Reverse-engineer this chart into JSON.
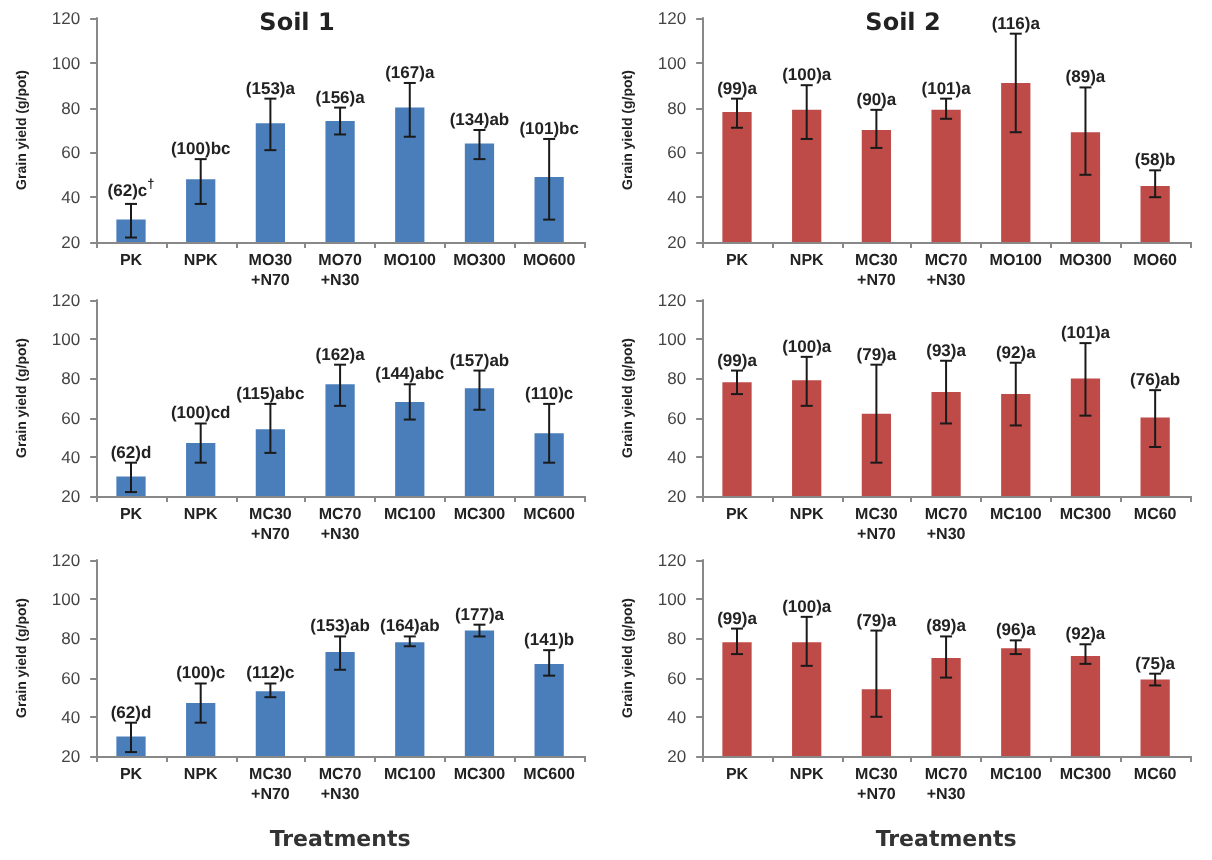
{
  "chart_data": [
    {
      "type": "bar",
      "title": "Soil 1",
      "ylabel": "Grain yield (g/pot)",
      "categories": [
        "PK",
        "NPK",
        "MO30\n+N70",
        "MO70\n+N30",
        "MO100",
        "MO300",
        "MO600"
      ],
      "values": [
        30,
        48,
        73,
        74,
        80,
        64,
        49
      ],
      "color": "#4a7ebb",
      "errors": [
        [
          22,
          37
        ],
        [
          37,
          57
        ],
        [
          61,
          84
        ],
        [
          68,
          80
        ],
        [
          67,
          91
        ],
        [
          57,
          70
        ],
        [
          30,
          66
        ]
      ],
      "annotations": [
        {
          "text": "(62)c$^{†}$",
          "x": "PK",
          "y": 37
        },
        {
          "text": "(100)bc",
          "x": "NPK",
          "y": 57
        },
        {
          "text": "(153)a",
          "x": "MO30\n+N70",
          "y": 84
        },
        {
          "text": "(156)a",
          "x": "MO70\n+N30",
          "y": 80
        },
        {
          "text": "(167)a",
          "x": "MO100",
          "y": 91
        },
        {
          "text": "(134)ab",
          "x": "MO300",
          "y": 70
        },
        {
          "text": "(101)bc",
          "x": "MO600",
          "y": 66
        }
      ],
      "ylim": [
        20,
        120
      ],
      "yticks": [
        20,
        40,
        60,
        80,
        100,
        120
      ]
    },
    {
      "type": "bar",
      "title": "Soil 2",
      "ylabel": "Grain yield (g/pot)",
      "categories": [
        "PK",
        "NPK",
        "MC30\n+N70",
        "MC70\n+N30",
        "MO100",
        "MO300",
        "MO60"
      ],
      "values": [
        78,
        79,
        70,
        79,
        91,
        69,
        45
      ],
      "color": "#be4b48",
      "errors": [
        [
          71,
          84
        ],
        [
          66,
          90
        ],
        [
          62,
          79
        ],
        [
          75,
          84
        ],
        [
          69,
          113
        ],
        [
          50,
          89
        ],
        [
          40,
          52
        ]
      ],
      "annotations": [
        {
          "text": "(99)a",
          "x": "PK",
          "y": 84
        },
        {
          "text": "(100)a",
          "x": "NPK",
          "y": 90
        },
        {
          "text": "(90)a",
          "x": "MC30\n+N70",
          "y": 79
        },
        {
          "text": "(101)a",
          "x": "MC70\n+N30",
          "y": 84
        },
        {
          "text": "(116)a",
          "x": "MO100",
          "y": 113
        },
        {
          "text": "(89)a",
          "x": "MO300",
          "y": 89
        },
        {
          "text": "(58)b",
          "x": "MO60",
          "y": 52
        }
      ],
      "ylim": [
        20,
        120
      ],
      "yticks": [
        20,
        40,
        60,
        80,
        100,
        120
      ]
    },
    {
      "type": "bar",
      "ylabel": "Grain yield (g/pot)",
      "categories": [
        "PK",
        "NPK",
        "MC30\n+N70",
        "MC70\n+N30",
        "MC100",
        "MC300",
        "MC600"
      ],
      "values": [
        30,
        47,
        54,
        77,
        68,
        75,
        52
      ],
      "color": "#4a7ebb",
      "errors": [
        [
          22,
          37
        ],
        [
          37,
          57
        ],
        [
          42,
          67
        ],
        [
          66,
          87
        ],
        [
          59,
          77
        ],
        [
          64,
          84
        ],
        [
          37,
          67
        ]
      ],
      "annotations": [
        {
          "text": "(62)d",
          "x": "PK",
          "y": 37
        },
        {
          "text": "(100)cd",
          "x": "NPK",
          "y": 57
        },
        {
          "text": "(115)abc",
          "x": "MC30\n+N70",
          "y": 67
        },
        {
          "text": "(162)a",
          "x": "MC70\n+N30",
          "y": 87
        },
        {
          "text": "(144)abc",
          "x": "MC100",
          "y": 77
        },
        {
          "text": "(157)ab",
          "x": "MC300",
          "y": 84
        },
        {
          "text": "(110)c",
          "x": "MC600",
          "y": 67
        }
      ],
      "ylim": [
        20,
        120
      ],
      "yticks": [
        20,
        40,
        60,
        80,
        100,
        120
      ]
    },
    {
      "type": "bar",
      "ylabel": "Grain yield (g/pot)",
      "categories": [
        "PK",
        "NPK",
        "MC30\n+N70",
        "MC70\n+N30",
        "MC100",
        "MC300",
        "MC60"
      ],
      "values": [
        78,
        79,
        62,
        73,
        72,
        80,
        60
      ],
      "color": "#be4b48",
      "errors": [
        [
          72,
          84
        ],
        [
          66,
          91
        ],
        [
          37,
          87
        ],
        [
          57,
          89
        ],
        [
          56,
          88
        ],
        [
          61,
          98
        ],
        [
          45,
          74
        ]
      ],
      "annotations": [
        {
          "text": "(99)a",
          "x": "PK",
          "y": 84
        },
        {
          "text": "(100)a",
          "x": "NPK",
          "y": 91
        },
        {
          "text": "(79)a",
          "x": "MC30\n+N70",
          "y": 87
        },
        {
          "text": "(93)a",
          "x": "MC70\n+N30",
          "y": 89
        },
        {
          "text": "(92)a",
          "x": "MC100",
          "y": 88
        },
        {
          "text": "(101)a",
          "x": "MC300",
          "y": 98
        },
        {
          "text": "(76)ab",
          "x": "MC60",
          "y": 74
        }
      ],
      "ylim": [
        20,
        120
      ],
      "yticks": [
        20,
        40,
        60,
        80,
        100,
        120
      ]
    },
    {
      "type": "bar",
      "ylabel": "Grain yield (g/pot)",
      "xlabel": "Treatments",
      "categories": [
        "PK",
        "NPK",
        "MC30\n+N70",
        "MC70\n+N30",
        "MC100",
        "MC300",
        "MC600"
      ],
      "values": [
        30,
        47,
        53,
        73,
        78,
        84,
        67
      ],
      "color": "#4a7ebb",
      "errors": [
        [
          22,
          37
        ],
        [
          37,
          57
        ],
        [
          50,
          57
        ],
        [
          64,
          81
        ],
        [
          76,
          81
        ],
        [
          81,
          87
        ],
        [
          61,
          74
        ]
      ],
      "annotations": [
        {
          "text": "(62)d",
          "x": "PK",
          "y": 37
        },
        {
          "text": "(100)c",
          "x": "NPK",
          "y": 57
        },
        {
          "text": "(112)c",
          "x": "MC30\n+N70",
          "y": 57
        },
        {
          "text": "(153)ab",
          "x": "MC70\n+N30",
          "y": 81
        },
        {
          "text": "(164)ab",
          "x": "MC100",
          "y": 81
        },
        {
          "text": "(177)a",
          "x": "MC300",
          "y": 87
        },
        {
          "text": "(141)b",
          "x": "MC600",
          "y": 74
        }
      ],
      "ylim": [
        20,
        120
      ],
      "yticks": [
        20,
        40,
        60,
        80,
        100,
        120
      ]
    },
    {
      "type": "bar",
      "ylabel": "Grain yield (g/pot)",
      "xlabel": "Treatments",
      "categories": [
        "PK",
        "NPK",
        "MC30\n+N70",
        "MC70\n+N30",
        "MC100",
        "MC300",
        "MC60"
      ],
      "values": [
        78,
        78,
        54,
        70,
        75,
        71,
        59
      ],
      "color": "#be4b48",
      "errors": [
        [
          72,
          85
        ],
        [
          66,
          91
        ],
        [
          40,
          84
        ],
        [
          60,
          81
        ],
        [
          72,
          79
        ],
        [
          67,
          77
        ],
        [
          56,
          62
        ]
      ],
      "annotations": [
        {
          "text": "(99)a",
          "x": "PK",
          "y": 85
        },
        {
          "text": "(100)a",
          "x": "NPK",
          "y": 91
        },
        {
          "text": "(79)a",
          "x": "MC30\n+N70",
          "y": 84
        },
        {
          "text": "(89)a",
          "x": "MC70\n+N30",
          "y": 81
        },
        {
          "text": "(96)a",
          "x": "MC100",
          "y": 79
        },
        {
          "text": "(92)a",
          "x": "MC300",
          "y": 77
        },
        {
          "text": "(75)a",
          "x": "MC60",
          "y": 62
        }
      ],
      "ylim": [
        20,
        120
      ],
      "yticks": [
        20,
        40,
        60,
        80,
        100,
        120
      ]
    }
  ]
}
